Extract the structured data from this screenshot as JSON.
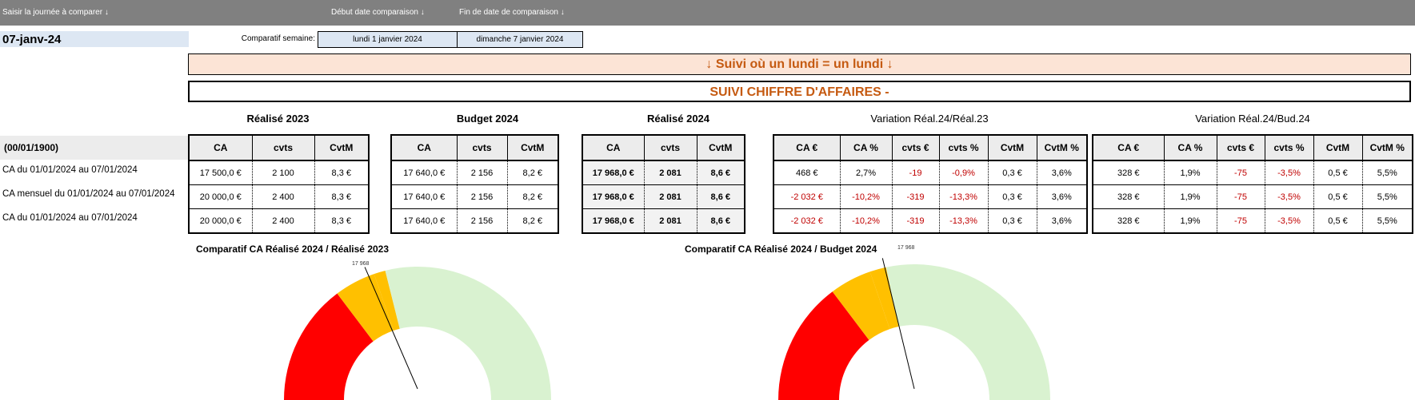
{
  "header": {
    "col1": "Saisir la journée à comparer ↓",
    "col2": "Début date comparaison ↓",
    "col3": "Fin de date de comparaison ↓"
  },
  "selected_date": "07-janv-24",
  "week": {
    "label": "Comparatif semaine:",
    "start": "lundi 1 janvier 2024",
    "end": "dimanche 7 janvier 2024"
  },
  "banner_top": "↓  Suivi où un lundi = un lundi  ↓",
  "banner_title": "SUIVI CHIFFRE D'AFFAIRES -",
  "period_header": "(00/01/1900)",
  "row_labels": [
    "CA du 01/01/2024 au 07/01/2024",
    "CA mensuel du 01/01/2024 au 07/01/2024",
    "CA du 01/01/2024 au 07/01/2024"
  ],
  "groups": {
    "realise2023": {
      "title": "Réalisé 2023",
      "headers": [
        "CA",
        "cvts",
        "CvtM"
      ],
      "rows": [
        [
          "17 500,0 €",
          "2 100",
          "8,3 €"
        ],
        [
          "20 000,0 €",
          "2 400",
          "8,3 €"
        ],
        [
          "20 000,0 €",
          "2 400",
          "8,3 €"
        ]
      ]
    },
    "budget2024": {
      "title": "Budget 2024",
      "headers": [
        "CA",
        "cvts",
        "CvtM"
      ],
      "rows": [
        [
          "17 640,0 €",
          "2 156",
          "8,2 €"
        ],
        [
          "17 640,0 €",
          "2 156",
          "8,2 €"
        ],
        [
          "17 640,0 €",
          "2 156",
          "8,2 €"
        ]
      ]
    },
    "realise2024": {
      "title": "Réalisé 2024",
      "headers": [
        "CA",
        "cvts",
        "CvtM"
      ],
      "rows": [
        [
          "17 968,0 €",
          "2 081",
          "8,6 €"
        ],
        [
          "17 968,0 €",
          "2 081",
          "8,6 €"
        ],
        [
          "17 968,0 €",
          "2 081",
          "8,6 €"
        ]
      ]
    },
    "var_r24_r23": {
      "title": "Variation Réal.24/Réal.23",
      "headers": [
        "CA €",
        "CA %",
        "cvts €",
        "cvts %",
        "CvtM",
        "CvtM %"
      ],
      "rows": [
        [
          "468 €",
          "2,7%",
          "-19",
          "-0,9%",
          "0,3 €",
          "3,6%"
        ],
        [
          "-2 032 €",
          "-10,2%",
          "-319",
          "-13,3%",
          "0,3 €",
          "3,6%"
        ],
        [
          "-2 032 €",
          "-10,2%",
          "-319",
          "-13,3%",
          "0,3 €",
          "3,6%"
        ]
      ]
    },
    "var_r24_b24": {
      "title": "Variation Réal.24/Bud.24",
      "headers": [
        "CA €",
        "CA %",
        "cvts €",
        "cvts %",
        "CvtM",
        "CvtM %"
      ],
      "rows": [
        [
          "328 €",
          "1,9%",
          "-75",
          "-3,5%",
          "0,5 €",
          "5,5%"
        ],
        [
          "328 €",
          "1,9%",
          "-75",
          "-3,5%",
          "0,5 €",
          "5,5%"
        ],
        [
          "328 €",
          "1,9%",
          "-75",
          "-3,5%",
          "0,5 €",
          "5,5%"
        ]
      ]
    }
  },
  "colors": {
    "red_zone": "#ff0000",
    "orange_zone": "#ffc000",
    "green_zone": "#d9f2d0",
    "negative_text": "#c00000",
    "title_orange": "#c55a11"
  },
  "gauges": [
    {
      "title": "Comparatif CA Réalisé 2024 / Réalisé 2023",
      "value_label": "17 968",
      "zones_deg": [
        53,
        18,
        5,
        104
      ],
      "needle_fraction": 0.38
    },
    {
      "title": "Comparatif CA Réalisé 2024 / Budget 2024",
      "value_label": "17 968",
      "zones_deg": [
        53,
        18,
        7,
        102
      ],
      "needle_fraction": 0.43
    }
  ]
}
